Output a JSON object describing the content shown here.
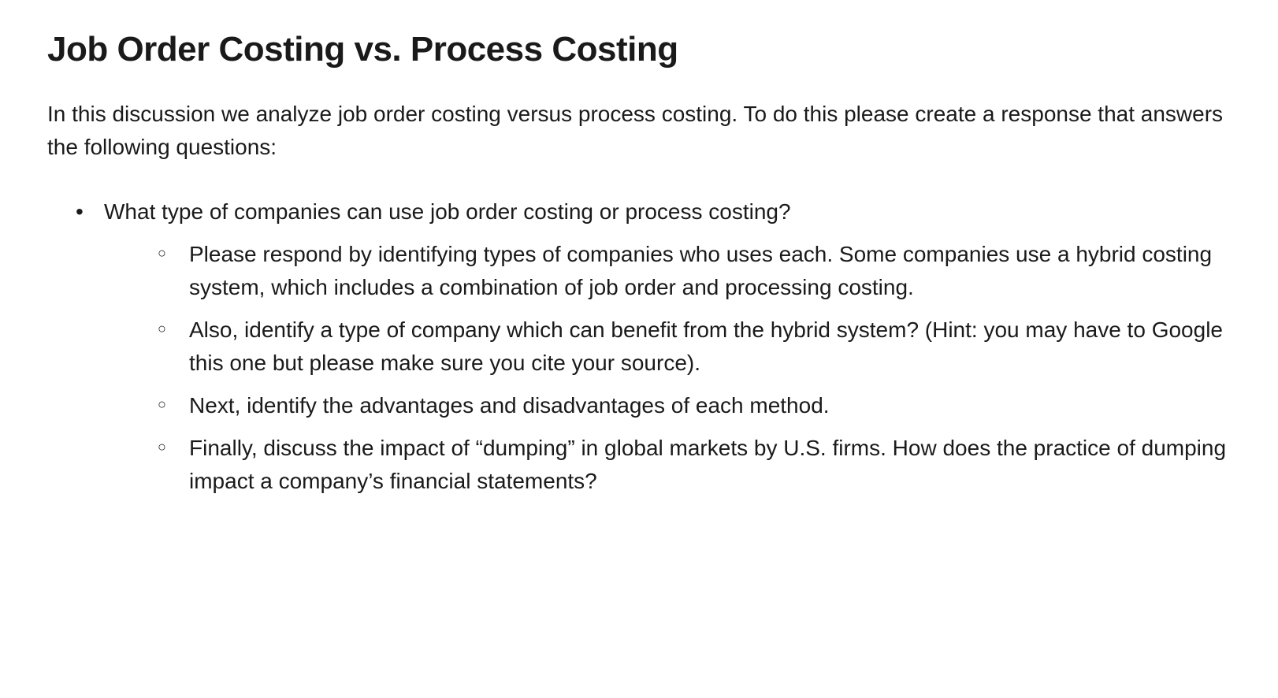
{
  "title": "Job Order Costing vs. Process Costing",
  "intro": "In this discussion we analyze job order costing versus process costing. To do this please create a response that answers the following questions:",
  "main_question": "What type of companies can use job order costing or process costing?",
  "sub_items": [
    "Please respond by identifying types of companies who uses each. Some companies use a hybrid costing system, which includes a combination of job order and processing costing.",
    "Also, identify a type of company which can benefit from the hybrid system? (Hint: you may have to Google this one but please make sure you cite your source).",
    "Next, identify the advantages and disadvantages of each method.",
    "Finally, discuss the impact of “dumping” in global markets by U.S. firms. How does the practice of dumping impact a company’s financial statements?"
  ],
  "colors": {
    "text": "#1a1a1a",
    "background": "#ffffff"
  },
  "typography": {
    "title_fontsize": 44,
    "title_weight": 700,
    "body_fontsize": 28,
    "body_weight": 400,
    "line_height": 1.5
  }
}
